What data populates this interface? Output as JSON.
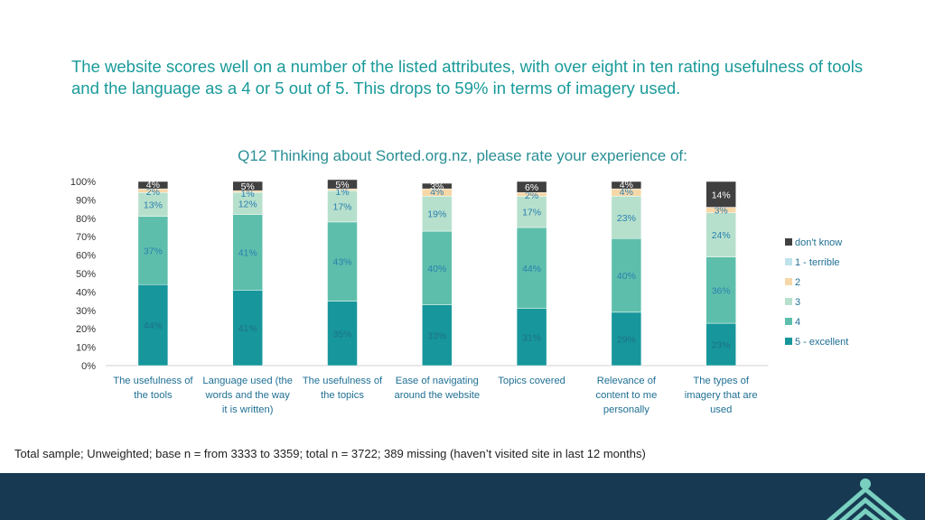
{
  "headline": "The website scores well on a number of the listed attributes, with over eight in ten rating usefulness of tools and the language as a 4 or 5 out of 5.  This drops to 59% in terms of imagery used.",
  "footnote": "Total sample; Unweighted; base n = from 3333 to 3359; total n = 3722; 389 missing (haven’t visited site in last 12 months)",
  "colors": {
    "excellent": "#17979b",
    "four": "#5dbfab",
    "three": "#b6e0cc",
    "two": "#f6d7a8",
    "terrible": "#bfe3ec",
    "dont_know": "#404040",
    "title": "#2a8f95",
    "footer": "#173a52"
  },
  "chart_data": {
    "type": "bar",
    "stacked": true,
    "title": "Q12 Thinking about Sorted.org.nz, please rate your experience of:",
    "categories": [
      [
        "The usefulness of",
        "the tools"
      ],
      [
        "Language used (the",
        "words and the way",
        "it is written)"
      ],
      [
        "The usefulness of",
        "the topics"
      ],
      [
        "Ease of navigating",
        "around the website"
      ],
      [
        "Topics covered"
      ],
      [
        "Relevance of",
        "content to me",
        "personally"
      ],
      [
        "The types of",
        "imagery that are",
        "used"
      ]
    ],
    "ylim": [
      0,
      100
    ],
    "yticks": [
      "0%",
      "10%",
      "20%",
      "30%",
      "40%",
      "50%",
      "60%",
      "70%",
      "80%",
      "90%",
      "100%"
    ],
    "legend_position": "right",
    "series": [
      {
        "name": "5 - excellent",
        "color_key": "excellent",
        "label_color": "#1e6f8a",
        "values": [
          44,
          41,
          35,
          33,
          31,
          29,
          23
        ]
      },
      {
        "name": "4",
        "color_key": "four",
        "label_color": "#2a7fb0",
        "values": [
          37,
          41,
          43,
          40,
          44,
          40,
          36
        ]
      },
      {
        "name": "3",
        "color_key": "three",
        "label_color": "#2a7fb0",
        "values": [
          13,
          12,
          17,
          19,
          17,
          23,
          24
        ]
      },
      {
        "name": "2",
        "color_key": "two",
        "label_color": "#2a7fb0",
        "values": [
          2,
          1,
          1,
          4,
          2,
          4,
          3
        ]
      },
      {
        "name": "1 - terrible",
        "color_key": "terrible",
        "label_color": "#2a7fb0",
        "values": [
          0,
          0,
          0,
          0,
          0,
          0,
          0
        ]
      },
      {
        "name": "don't know",
        "color_key": "dont_know",
        "label_color": "#ffffff",
        "values": [
          4,
          5,
          5,
          3,
          6,
          4,
          14
        ]
      }
    ],
    "legend_order": [
      "don't know",
      "1 - terrible",
      "2",
      "3",
      "4",
      "5 - excellent"
    ]
  }
}
